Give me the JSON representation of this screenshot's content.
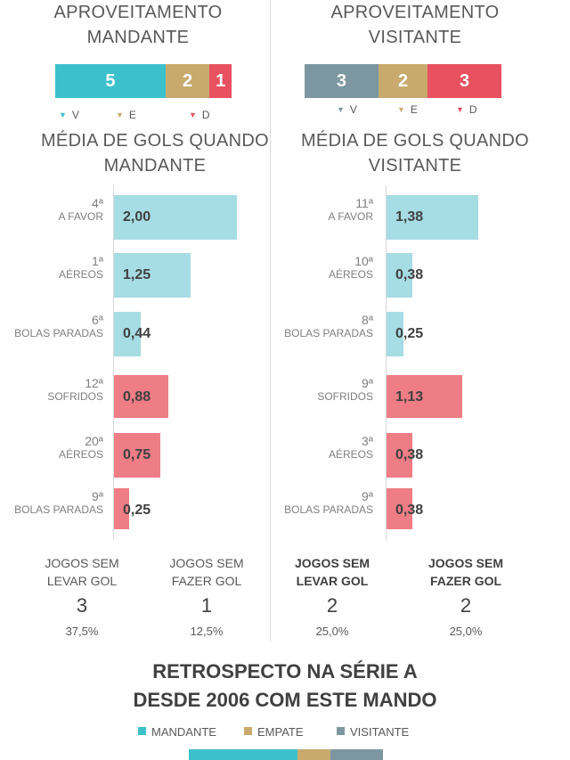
{
  "colors": {
    "win": "#3cc1cc",
    "draw": "#c8aa6e",
    "loss": "#e8515f",
    "away_win": "#7c97a0",
    "goals_for": "#a6dce4",
    "goals_against": "#ee7d85"
  },
  "home": {
    "title": [
      "APROVEITAMENTO",
      "MANDANTE"
    ],
    "record": [
      {
        "label": "V",
        "value": 5,
        "color": "#3cc1cc"
      },
      {
        "label": "E",
        "value": 2,
        "color": "#c8aa6e"
      },
      {
        "label": "D",
        "value": 1,
        "color": "#e8515f"
      }
    ],
    "goals_title": [
      "MÉDIA DE GOLS QUANDO",
      "MANDANTE"
    ],
    "rows": [
      {
        "rank": "4ª",
        "label": "A FAVOR",
        "value": 2.0,
        "display": "2,00",
        "kind": "for"
      },
      {
        "rank": "1ª",
        "label": "AÉREOS",
        "value": 1.25,
        "display": "1,25",
        "kind": "for"
      },
      {
        "rank": "6ª",
        "label": "BOLAS PARADAS",
        "value": 0.44,
        "display": "0,44",
        "kind": "for"
      },
      {
        "rank": "12ª",
        "label": "SOFRIDOS",
        "value": 0.88,
        "display": "0,88",
        "kind": "against"
      },
      {
        "rank": "20ª",
        "label": "AÉREOS",
        "value": 0.75,
        "display": "0,75",
        "kind": "against"
      },
      {
        "rank": "9ª",
        "label": "BOLAS PARADAS",
        "value": 0.25,
        "display": "0,25",
        "kind": "against"
      }
    ],
    "stats": [
      {
        "label1": "JOGOS SEM",
        "label2": "LEVAR GOL",
        "num": "3",
        "pct": "37,5%"
      },
      {
        "label1": "JOGOS SEM",
        "label2": "FAZER GOL",
        "num": "1",
        "pct": "12,5%"
      }
    ]
  },
  "away": {
    "title": [
      "APROVEITAMENTO",
      "VISITANTE"
    ],
    "record": [
      {
        "label": "V",
        "value": 3,
        "color": "#7c97a0"
      },
      {
        "label": "E",
        "value": 2,
        "color": "#c8aa6e"
      },
      {
        "label": "D",
        "value": 3,
        "color": "#e8515f"
      }
    ],
    "goals_title": [
      "MÉDIA DE GOLS QUANDO",
      "VISITANTE"
    ],
    "rows": [
      {
        "rank": "11ª",
        "label": "A FAVOR",
        "value": 1.38,
        "display": "1,38",
        "kind": "for"
      },
      {
        "rank": "10ª",
        "label": "AÉREOS",
        "value": 0.38,
        "display": "0,38",
        "kind": "for"
      },
      {
        "rank": "8ª",
        "label": "BOLAS PARADAS",
        "value": 0.25,
        "display": "0,25",
        "kind": "for"
      },
      {
        "rank": "9ª",
        "label": "SOFRIDOS",
        "value": 1.13,
        "display": "1,13",
        "kind": "against"
      },
      {
        "rank": "3ª",
        "label": "AÉREOS",
        "value": 0.38,
        "display": "0,38",
        "kind": "against"
      },
      {
        "rank": "9ª",
        "label": "BOLAS PARADAS",
        "value": 0.38,
        "display": "0,38",
        "kind": "against"
      }
    ],
    "stats": [
      {
        "label1": "JOGOS SEM",
        "label2": "LEVAR GOL",
        "num": "2",
        "pct": "25,0%"
      },
      {
        "label1": "JOGOS SEM",
        "label2": "FAZER GOL",
        "num": "2",
        "pct": "25,0%"
      }
    ]
  },
  "retrospect": {
    "title": [
      "RETROSPECTO NA SÉRIE A",
      "DESDE 2006 COM ESTE MANDO"
    ],
    "legend": [
      {
        "label": "MANDANTE",
        "color": "#3cc1cc"
      },
      {
        "label": "EMPATE",
        "color": "#c8aa6e"
      },
      {
        "label": "VISITANTE",
        "color": "#7c97a0"
      }
    ]
  },
  "chart_data": [
    {
      "type": "bar",
      "title": "APROVEITAMENTO MANDANTE",
      "orientation": "stacked-horizontal",
      "categories": [
        "V",
        "E",
        "D"
      ],
      "values": [
        5,
        2,
        1
      ],
      "legend": "bottom"
    },
    {
      "type": "bar",
      "title": "APROVEITAMENTO VISITANTE",
      "orientation": "stacked-horizontal",
      "categories": [
        "V",
        "E",
        "D"
      ],
      "values": [
        3,
        2,
        3
      ],
      "legend": "bottom"
    },
    {
      "type": "bar",
      "title": "MÉDIA DE GOLS QUANDO MANDANTE",
      "orientation": "horizontal",
      "categories": [
        "A FAVOR",
        "AÉREOS",
        "BOLAS PARADAS",
        "SOFRIDOS",
        "AÉREOS",
        "BOLAS PARADAS"
      ],
      "ranks": [
        "4ª",
        "1ª",
        "6ª",
        "12ª",
        "20ª",
        "9ª"
      ],
      "values": [
        2.0,
        1.25,
        0.44,
        0.88,
        0.75,
        0.25
      ]
    },
    {
      "type": "bar",
      "title": "MÉDIA DE GOLS QUANDO VISITANTE",
      "orientation": "horizontal",
      "categories": [
        "A FAVOR",
        "AÉREOS",
        "BOLAS PARADAS",
        "SOFRIDOS",
        "AÉREOS",
        "BOLAS PARADAS"
      ],
      "ranks": [
        "11ª",
        "10ª",
        "8ª",
        "9ª",
        "3ª",
        "9ª"
      ],
      "values": [
        1.38,
        0.38,
        0.25,
        1.13,
        0.38,
        0.38
      ]
    }
  ]
}
